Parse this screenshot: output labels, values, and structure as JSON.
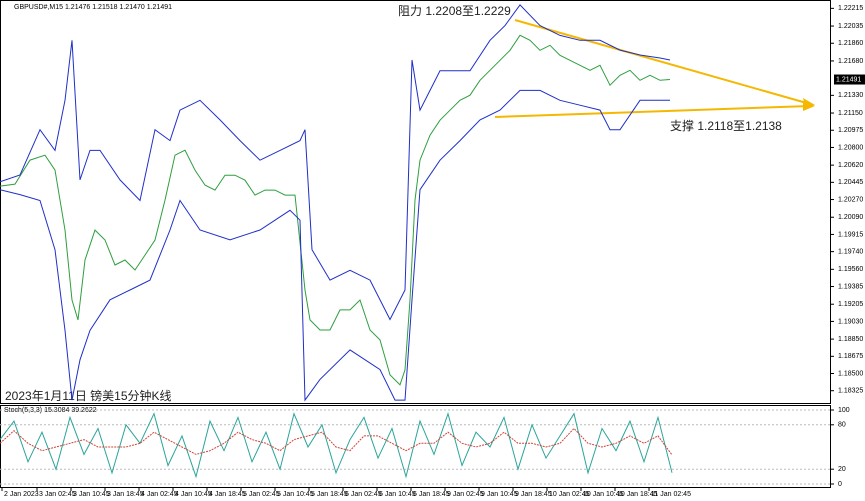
{
  "chart_data": [
    {
      "type": "line",
      "title": "GBPUSD#,M15  1.21476 1.21518 1.21470 1.21491",
      "annotations": [
        "阻力 1.2208至1.2229",
        "支撑 1.2118至1.2138",
        "2023年1月11日 镑美15分钟K线"
      ],
      "last_price": 1.21491,
      "xlim": [
        0,
        830
      ],
      "ylim": [
        1.182,
        1.223
      ],
      "xticks": [
        {
          "value": 2,
          "label": "2 Jan 2023"
        },
        {
          "value": 37,
          "label": "3 Jan 02:45"
        },
        {
          "value": 71,
          "label": "3 Jan 10:45"
        },
        {
          "value": 105,
          "label": "3 Jan 18:45"
        },
        {
          "value": 139,
          "label": "4 Jan 02:45"
        },
        {
          "value": 173,
          "label": "4 Jan 10:45"
        },
        {
          "value": 207,
          "label": "4 Jan 18:45"
        },
        {
          "value": 241,
          "label": "5 Jan 02:45"
        },
        {
          "value": 275,
          "label": "5 Jan 10:45"
        },
        {
          "value": 309,
          "label": "5 Jan 18:45"
        },
        {
          "value": 343,
          "label": "6 Jan 02:45"
        },
        {
          "value": 377,
          "label": "6 Jan 10:45"
        },
        {
          "value": 411,
          "label": "6 Jan 18:45"
        },
        {
          "value": 445,
          "label": "9 Jan 02:45"
        },
        {
          "value": 479,
          "label": "9 Jan 10:45"
        },
        {
          "value": 513,
          "label": "9 Jan 18:45"
        },
        {
          "value": 547,
          "label": "10 Jan 02:45"
        },
        {
          "value": 581,
          "label": "10 Jan 10:45"
        },
        {
          "value": 615,
          "label": "10 Jan 18:45"
        },
        {
          "value": 649,
          "label": "11 Jan 02:45"
        }
      ],
      "yticks": [
        1.22215,
        1.22035,
        {
          "value": 1.2186,
          "label": "1.21860"
        },
        {
          "value": 1.2168,
          "label": "1.21680"
        },
        {
          "value": 1.2133,
          "label": "1.21330"
        },
        {
          "value": 1.2115,
          "label": "1.21150"
        },
        1.20975,
        {
          "value": 1.208,
          "label": "1.20800"
        },
        {
          "value": 1.2062,
          "label": "1.20620"
        },
        1.20445,
        {
          "value": 1.2027,
          "label": "1.20270"
        },
        {
          "value": 1.2009,
          "label": "1.20090"
        },
        1.19915,
        {
          "value": 1.1974,
          "label": "1.19740"
        },
        {
          "value": 1.1956,
          "label": "1.19560"
        },
        1.19385,
        1.19205,
        {
          "value": 1.1903,
          "label": "1.19030"
        },
        {
          "value": 1.1885,
          "label": "1.18850"
        },
        1.18675,
        {
          "value": 1.185,
          "label": "1.18500"
        },
        1.18325
      ],
      "series": [
        {
          "color": "#2e9e3e",
          "x": [
            0,
            15,
            30,
            45,
            55,
            65,
            72,
            78,
            85,
            95,
            105,
            115,
            125,
            135,
            145,
            155,
            165,
            175,
            185,
            195,
            205,
            215,
            225,
            235,
            245,
            255,
            265,
            275,
            285,
            295,
            305,
            310,
            320,
            330,
            340,
            350,
            360,
            370,
            380,
            390,
            400,
            405,
            410,
            415,
            420,
            430,
            440,
            450,
            460,
            470,
            480,
            490,
            500,
            510,
            520,
            530,
            540,
            550,
            560,
            570,
            580,
            590,
            600,
            610,
            620,
            630,
            640,
            650,
            660,
            670
          ],
          "values": [
            1.20407,
            1.20427,
            1.20671,
            1.20721,
            1.20569,
            1.19959,
            1.19248,
            1.19045,
            1.19655,
            1.19959,
            1.19858,
            1.19604,
            1.19655,
            1.19553,
            1.19705,
            1.19858,
            1.20264,
            1.20721,
            1.20772,
            1.20569,
            1.20417,
            1.20366,
            1.20518,
            1.20518,
            1.20467,
            1.20315,
            1.20366,
            1.20366,
            1.20315,
            1.20315,
            1.1935,
            1.19045,
            1.18943,
            1.18943,
            1.19147,
            1.19147,
            1.19248,
            1.18943,
            1.18842,
            1.18486,
            1.18385,
            1.18537,
            1.19248,
            1.20264,
            1.20671,
            1.20925,
            1.21077,
            1.21179,
            1.2128,
            1.21331,
            1.21483,
            1.21585,
            1.21687,
            1.21788,
            1.21941,
            1.2189,
            1.21788,
            1.21839,
            1.21737,
            1.21687,
            1.21636,
            1.21585,
            1.21636,
            1.21433,
            1.21534,
            1.21585,
            1.21483,
            1.21534,
            1.21483,
            1.21491
          ]
        },
        {
          "color": "#1f2fc8",
          "x": [
            0,
            20,
            40,
            55,
            65,
            72,
            80,
            90,
            100,
            120,
            140,
            155,
            170,
            180,
            200,
            220,
            240,
            260,
            280,
            300,
            305,
            312,
            330,
            350,
            370,
            390,
            405,
            412,
            420,
            440,
            470,
            490,
            505,
            520,
            540,
            560,
            580,
            600,
            620,
            640,
            660,
            670
          ],
          "values": [
            1.2045,
            1.2052,
            1.2098,
            1.2077,
            1.2128,
            1.2189,
            1.2047,
            1.2077,
            1.2077,
            1.2047,
            1.2026,
            1.2098,
            1.2087,
            1.2118,
            1.2128,
            1.2108,
            1.2087,
            1.2067,
            1.2077,
            1.2087,
            1.2098,
            1.1976,
            1.1945,
            1.1955,
            1.1945,
            1.1905,
            1.1935,
            1.2169,
            1.2118,
            1.2158,
            1.2158,
            1.2189,
            1.2204,
            1.2225,
            1.2204,
            1.2194,
            1.2189,
            1.2189,
            1.2179,
            1.2174,
            1.2171,
            1.2169
          ]
        },
        {
          "color": "#1f2fc8",
          "x": [
            0,
            20,
            40,
            55,
            65,
            72,
            80,
            90,
            110,
            130,
            150,
            170,
            180,
            200,
            230,
            260,
            290,
            300,
            305,
            320,
            350,
            380,
            395,
            405,
            412,
            420,
            440,
            460,
            480,
            500,
            520,
            540,
            560,
            580,
            600,
            610,
            620,
            640,
            660,
            670
          ],
          "values": [
            1.2037,
            1.2032,
            1.2026,
            1.1976,
            1.1894,
            1.1823,
            1.1864,
            1.1894,
            1.1925,
            1.1935,
            1.1945,
            1.1996,
            1.2026,
            1.1996,
            1.1986,
            1.1996,
            1.2016,
            1.2006,
            1.1823,
            1.1844,
            1.1874,
            1.1854,
            1.1823,
            1.1823,
            1.1925,
            1.2037,
            1.2067,
            1.2087,
            1.2108,
            1.2118,
            1.2138,
            1.2138,
            1.2128,
            1.2123,
            1.2118,
            1.2098,
            1.2098,
            1.2128,
            1.2128,
            1.2128
          ]
        }
      ]
    },
    {
      "type": "line",
      "title": "Stoch(5,3,3) 15.3084 39.2622",
      "xlim": [
        0,
        830
      ],
      "ylim": [
        0,
        100
      ],
      "yticks": [
        100,
        80,
        20,
        0
      ],
      "series": [
        {
          "color": "#2aa59a",
          "x": [
            0,
            14,
            28,
            42,
            56,
            70,
            84,
            98,
            112,
            126,
            140,
            154,
            168,
            182,
            196,
            210,
            224,
            238,
            252,
            266,
            280,
            294,
            308,
            322,
            336,
            350,
            364,
            378,
            392,
            406,
            420,
            434,
            448,
            462,
            476,
            490,
            504,
            518,
            532,
            546,
            560,
            574,
            588,
            602,
            616,
            630,
            644,
            658,
            672
          ],
          "values": [
            60,
            85,
            30,
            70,
            20,
            90,
            40,
            75,
            15,
            80,
            55,
            95,
            25,
            65,
            10,
            85,
            45,
            90,
            30,
            70,
            20,
            95,
            50,
            80,
            15,
            60,
            90,
            35,
            75,
            10,
            85,
            40,
            95,
            25,
            70,
            50,
            90,
            20,
            80,
            35,
            65,
            95,
            15,
            75,
            45,
            85,
            30,
            90,
            15.3084
          ]
        },
        {
          "color": "#d0453a",
          "x": [
            0,
            14,
            28,
            42,
            56,
            70,
            84,
            98,
            112,
            126,
            140,
            154,
            168,
            182,
            196,
            210,
            224,
            238,
            252,
            266,
            280,
            294,
            308,
            322,
            336,
            350,
            364,
            378,
            392,
            406,
            420,
            434,
            448,
            462,
            476,
            490,
            504,
            518,
            532,
            546,
            560,
            574,
            588,
            602,
            616,
            630,
            644,
            658,
            672
          ],
          "values": [
            55,
            72,
            55,
            45,
            50,
            55,
            60,
            50,
            50,
            50,
            55,
            70,
            60,
            50,
            40,
            45,
            55,
            70,
            60,
            55,
            45,
            60,
            65,
            70,
            50,
            45,
            65,
            65,
            55,
            45,
            55,
            55,
            70,
            55,
            50,
            55,
            70,
            55,
            55,
            50,
            55,
            75,
            55,
            50,
            55,
            65,
            55,
            65,
            39.2622
          ]
        }
      ]
    }
  ]
}
